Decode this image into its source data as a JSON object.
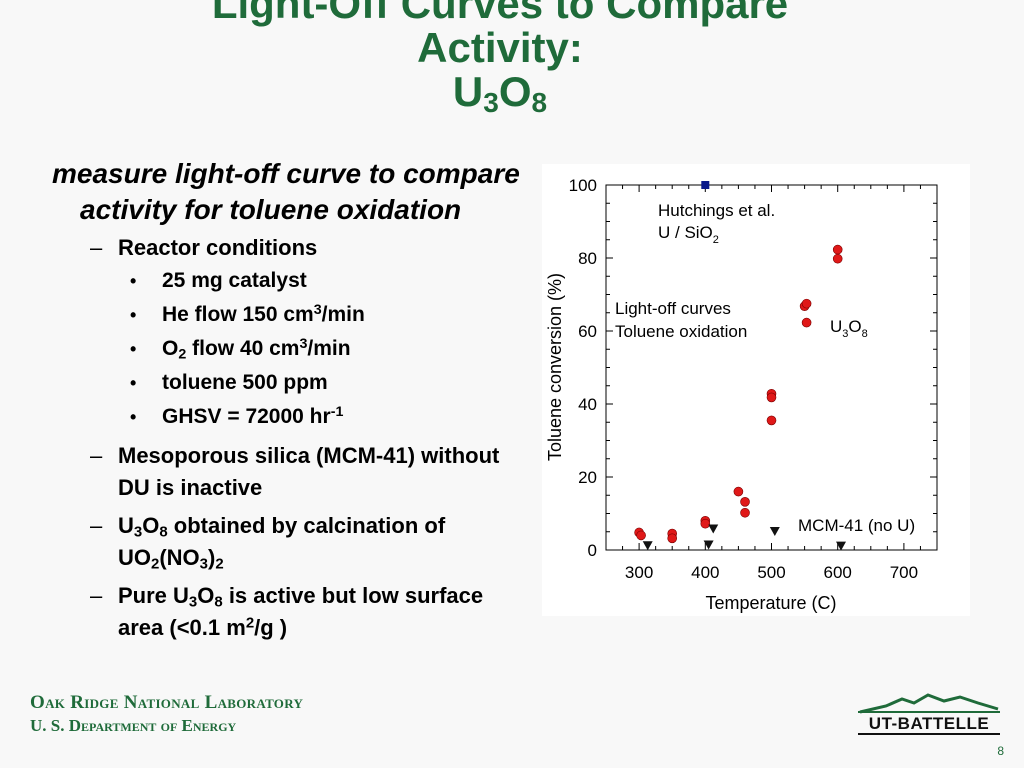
{
  "slide": {
    "title_line1": "Light-Off Curves  to Compare",
    "title_line2": "Activity:",
    "title_u": "U",
    "title_u_sub": "3",
    "title_o": "O",
    "title_o_sub": "8",
    "page_number": "8"
  },
  "bullets": {
    "main": "measure light-off curve to compare activity for toluene oxidation",
    "dash": "–",
    "dot": "•",
    "reactor": "Reactor conditions",
    "catalyst": "25 mg catalyst",
    "he_flow_a": "He flow 150 cm",
    "he_flow_sup": "3",
    "he_flow_b": "/min",
    "o2_a": "O",
    "o2_sub": "2",
    "o2_b": " flow 40 cm",
    "o2_sup": "3",
    "o2_c": "/min",
    "toluene": "toluene 500 ppm",
    "ghsv_a": "GHSV = 72000 hr",
    "ghsv_sup": "-1",
    "mcm": "Mesoporous silica (MCM-41) without DU is inactive",
    "u3o8_u": "U",
    "u3o8_3": "3",
    "u3o8_o": "O",
    "u3o8_8": "8",
    "u3o8_rest": " obtained by calcination of",
    "uo2_a": "UO",
    "uo2_sub": "2",
    "uo2_b": "(NO",
    "uo2_sub2": "3",
    "uo2_c": ")",
    "uo2_sub3": "2",
    "pure_a": "Pure U",
    "pure_sub3": "3",
    "pure_o": "O",
    "pure_sub8": "8",
    "pure_b": " is active but low surface area (<0.1 m",
    "pure_sup": "2",
    "pure_c": "/g )"
  },
  "footer": {
    "lab": "Oak Ridge National Laboratory",
    "doe": "U. S. Department of Energy",
    "logo": "UT-BATTELLE"
  },
  "colors": {
    "title_green": "#1f6b3a",
    "u3o8_marker": "#e01818",
    "hutchings_marker": "#0a1a8a",
    "mcm_marker": "#111111"
  },
  "chart_data": {
    "type": "scatter",
    "xlabel": "Temperature (C)",
    "ylabel": "Toluene conversion (%)",
    "xlim": [
      250,
      750
    ],
    "ylim": [
      0,
      100
    ],
    "xticks": [
      300,
      400,
      500,
      600,
      700
    ],
    "yticks": [
      0,
      20,
      40,
      60,
      80,
      100
    ],
    "grid": false,
    "series": [
      {
        "name": "U3O8",
        "marker": "circle",
        "color": "#e01818",
        "points": [
          [
            300,
            4.8
          ],
          [
            303,
            4.0
          ],
          [
            350,
            4.5
          ],
          [
            350,
            3.2
          ],
          [
            400,
            8.0
          ],
          [
            400,
            7.2
          ],
          [
            450,
            16.0
          ],
          [
            460,
            13.2
          ],
          [
            460,
            10.2
          ],
          [
            500,
            42.8
          ],
          [
            500,
            41.8
          ],
          [
            500,
            35.5
          ],
          [
            550,
            66.8
          ],
          [
            553,
            67.5
          ],
          [
            553,
            62.3
          ],
          [
            600,
            82.3
          ],
          [
            600,
            79.8
          ]
        ]
      },
      {
        "name": "MCM-41 (no U)",
        "marker": "triangle-down",
        "color": "#111111",
        "points": [
          [
            313,
            1.3
          ],
          [
            405,
            1.5
          ],
          [
            412,
            5.9
          ],
          [
            505,
            5.2
          ],
          [
            605,
            1.2
          ]
        ]
      },
      {
        "name": "Hutchings et al. U / SiO2",
        "marker": "square",
        "color": "#0a1a8a",
        "points": [
          [
            400,
            100
          ]
        ]
      }
    ],
    "annotations": {
      "hutchings_line1": "Hutchings et al.",
      "hutchings_line2a": "U / SiO",
      "hutchings_line2sub": "2",
      "lightoff_line1": "Light-off curves",
      "lightoff_line2": "Toluene oxidation",
      "u3o8_a": "U",
      "u3o8_sub3": "3",
      "u3o8_b": "O",
      "u3o8_sub8": "8",
      "mcm": "MCM-41 (no U)"
    }
  }
}
